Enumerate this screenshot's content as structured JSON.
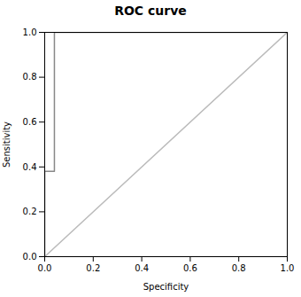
{
  "chart_data": {
    "type": "line",
    "title": "ROC curve",
    "xlabel": "Specificity",
    "ylabel": "Sensitivity",
    "xlim": [
      0.0,
      1.0
    ],
    "ylim": [
      0.0,
      1.0
    ],
    "xticks": [
      {
        "value": 0.0,
        "label": "0.0"
      },
      0.2,
      0.4,
      0.6,
      0.8,
      {
        "value": 1.0,
        "label": "1.0"
      }
    ],
    "yticks": [
      {
        "value": 0.0,
        "label": "0.0"
      },
      0.2,
      0.4,
      0.6,
      0.8,
      {
        "value": 1.0,
        "label": "1.0"
      }
    ],
    "grid": false,
    "series": [
      {
        "x": [
          0.0,
          1.0
        ],
        "values": [
          0.0,
          1.0
        ],
        "color": "#bbbbbb"
      },
      {
        "x": [
          0.0,
          0.0,
          0.04,
          0.04,
          1.0
        ],
        "values": [
          0.0,
          0.38,
          0.38,
          1.0,
          1.0
        ],
        "color": "#888888"
      }
    ]
  }
}
